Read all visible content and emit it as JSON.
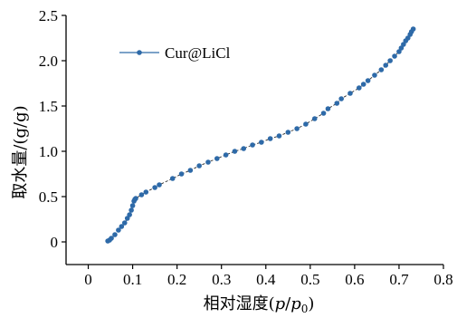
{
  "chart_data": {
    "type": "line",
    "xlabel_prefix": "相对湿度(",
    "xlabel_p": "p",
    "xlabel_slash": "/",
    "xlabel_p0": "p",
    "xlabel_sub0": "0",
    "xlabel_suffix": ")",
    "ylabel": "取水量/(g/g)",
    "xlim": [
      -0.05,
      0.8
    ],
    "ylim": [
      -0.25,
      2.5
    ],
    "xticks": [
      "0",
      "0.1",
      "0.2",
      "0.3",
      "0.4",
      "0.5",
      "0.6",
      "0.7",
      "0.8"
    ],
    "xtick_values": [
      0,
      0.1,
      0.2,
      0.3,
      0.4,
      0.5,
      0.6,
      0.7,
      0.8
    ],
    "yticks": [
      "0",
      "0.5",
      "1.0",
      "1.5",
      "2.0",
      "2.5"
    ],
    "ytick_values": [
      0,
      0.5,
      1.0,
      1.5,
      2.0,
      2.5
    ],
    "legend_position": "top-left",
    "series": [
      {
        "name": "Cur@LiCl",
        "color": "#2e6aa8",
        "x": [
          0.044,
          0.048,
          0.052,
          0.06,
          0.068,
          0.075,
          0.082,
          0.088,
          0.093,
          0.097,
          0.1,
          0.103,
          0.105,
          0.107,
          0.12,
          0.13,
          0.15,
          0.16,
          0.19,
          0.21,
          0.23,
          0.25,
          0.27,
          0.29,
          0.31,
          0.33,
          0.35,
          0.37,
          0.39,
          0.41,
          0.43,
          0.45,
          0.47,
          0.49,
          0.51,
          0.53,
          0.54,
          0.56,
          0.57,
          0.59,
          0.61,
          0.62,
          0.63,
          0.645,
          0.66,
          0.67,
          0.68,
          0.69,
          0.7,
          0.705,
          0.71,
          0.715,
          0.72,
          0.725,
          0.728,
          0.732
        ],
        "values": [
          0.01,
          0.02,
          0.04,
          0.08,
          0.13,
          0.17,
          0.21,
          0.26,
          0.3,
          0.35,
          0.4,
          0.45,
          0.47,
          0.48,
          0.52,
          0.55,
          0.6,
          0.63,
          0.7,
          0.75,
          0.79,
          0.84,
          0.88,
          0.92,
          0.96,
          1.0,
          1.03,
          1.07,
          1.1,
          1.14,
          1.17,
          1.21,
          1.25,
          1.3,
          1.36,
          1.42,
          1.47,
          1.53,
          1.58,
          1.64,
          1.7,
          1.74,
          1.78,
          1.84,
          1.9,
          1.95,
          2.0,
          2.05,
          2.1,
          2.14,
          2.18,
          2.22,
          2.25,
          2.29,
          2.32,
          2.35
        ]
      }
    ]
  }
}
